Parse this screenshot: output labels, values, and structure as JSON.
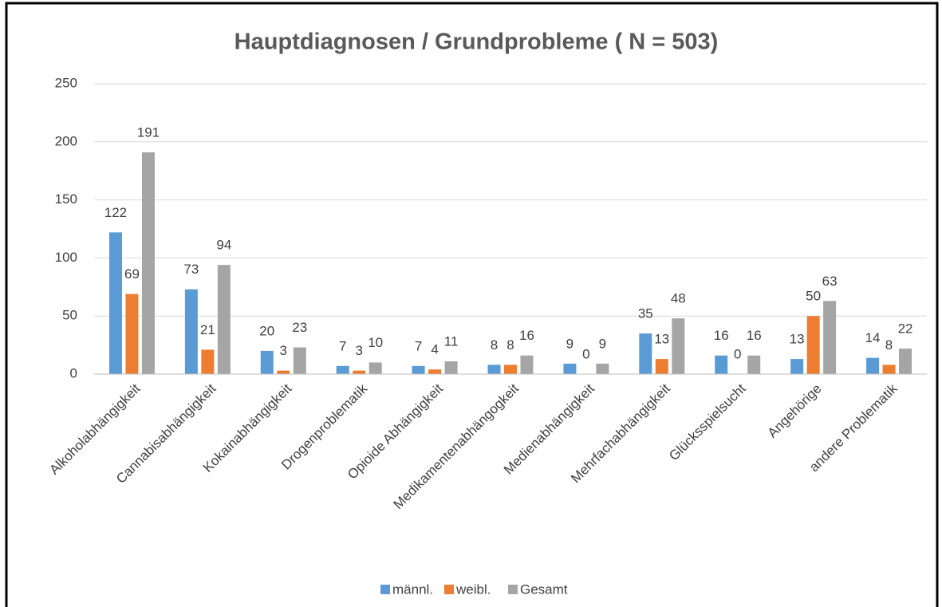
{
  "chart_data": {
    "type": "bar",
    "title": "Hauptdiagnosen / Grundprobleme ( N = 503)",
    "categories": [
      "Alkoholabhängigkeit",
      "Cannabisabhängigkeit",
      "Kokainabhängigkeit",
      "Drogenproblematik",
      "Opioide Abhängigkeit",
      "Medikamentenabhängogkeit",
      "Medienabhängigkeit",
      "Mehrfachabhängigkeit",
      "Glücksspielsucht",
      "Angehörige",
      "andere Problematik"
    ],
    "series": [
      {
        "name": "männl.",
        "color": "#5b9bd5",
        "values": [
          122,
          73,
          20,
          7,
          7,
          8,
          9,
          35,
          16,
          13,
          14
        ]
      },
      {
        "name": "weibl.",
        "color": "#ed7d31",
        "values": [
          69,
          21,
          3,
          3,
          4,
          8,
          0,
          13,
          0,
          50,
          8
        ]
      },
      {
        "name": "Gesamt",
        "color": "#a5a5a5",
        "values": [
          191,
          94,
          23,
          10,
          11,
          16,
          9,
          48,
          16,
          63,
          22
        ]
      }
    ],
    "ylim": [
      0,
      250
    ],
    "yticks": [
      0,
      50,
      100,
      150,
      200,
      250
    ],
    "grid": true,
    "legend": "bottom"
  }
}
